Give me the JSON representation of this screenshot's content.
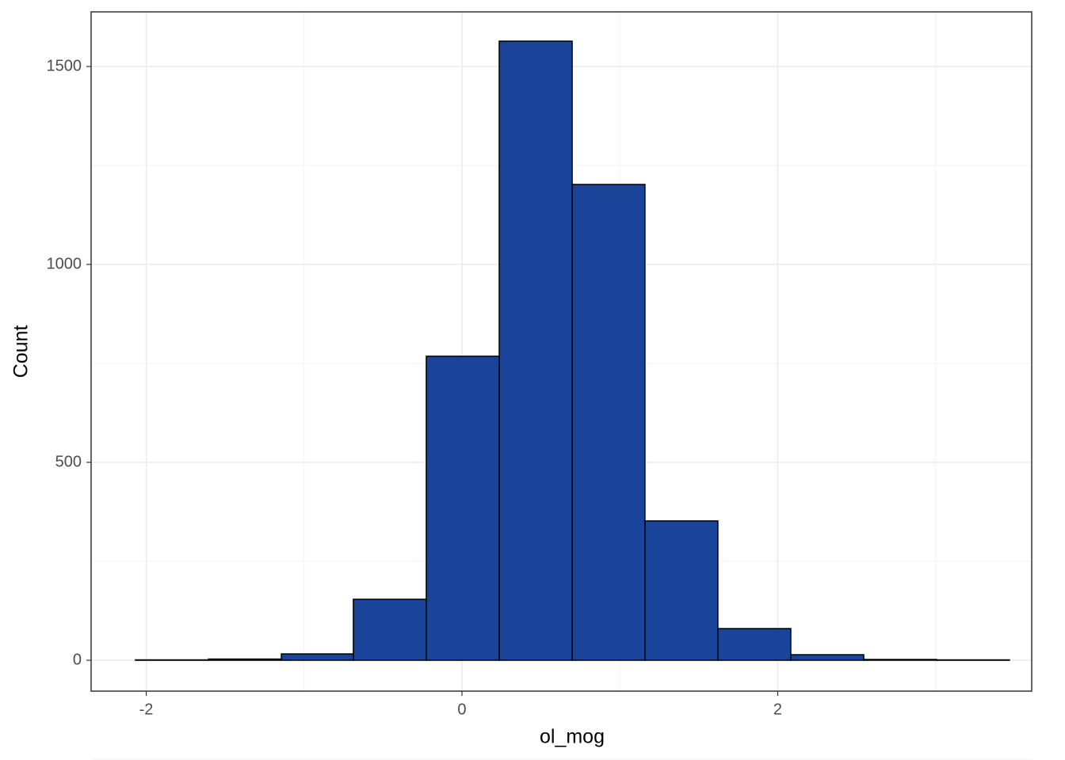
{
  "chart_data": {
    "type": "histogram",
    "x_label": "ol_mog",
    "y_label": "Count",
    "bins": [
      -2.068,
      -1.606,
      -1.144,
      -0.688,
      -0.226,
      0.236,
      0.698,
      1.159,
      1.621,
      2.083,
      2.545,
      3.006,
      3.468
    ],
    "values": [
      1,
      3,
      16,
      154,
      768,
      1564,
      1202,
      352,
      80,
      14,
      2,
      1
    ],
    "color": "#1a4499",
    "xlim": [
      -2.349,
      3.609
    ],
    "xticks": [
      -2,
      0,
      2
    ],
    "ylim": [
      -78,
      1638
    ],
    "yticks": [
      0,
      500,
      1000,
      1500
    ],
    "grid": true
  }
}
